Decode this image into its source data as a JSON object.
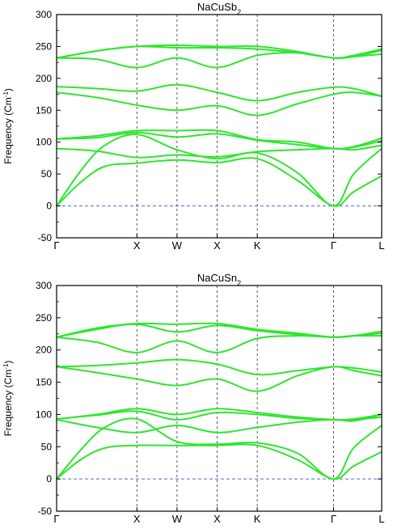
{
  "chart_data": [
    {
      "type": "line",
      "title": {
        "main": "NaCuSb",
        "sub": "2"
      },
      "ylabel": {
        "main": "Frequency (Cm",
        "sup": "-1",
        "end": ")"
      },
      "ylim": [
        -50,
        300
      ],
      "yticks": [
        -50,
        0,
        50,
        100,
        150,
        200,
        250,
        300
      ],
      "xticks": [
        {
          "label": "Γ",
          "x": 0
        },
        {
          "label": "X",
          "x": 1
        },
        {
          "label": "W",
          "x": 1.5
        },
        {
          "label": "X",
          "x": 2
        },
        {
          "label": "K",
          "x": 2.5
        },
        {
          "label": "Γ",
          "x": 3.45
        },
        {
          "label": "L",
          "x": 4.05
        }
      ],
      "xlim": [
        0,
        4.05
      ],
      "grid": "dashed vertical lines at symmetry points",
      "zero_line": "dashed blue",
      "line_color": "#2ee62e",
      "series": [
        {
          "x": [
            0,
            0.3,
            0.6,
            1.0,
            1.5,
            2.0,
            2.5,
            3.0,
            3.45,
            3.7,
            4.05
          ],
          "y": [
            0,
            37,
            62,
            67,
            72,
            68,
            74,
            40,
            0,
            22,
            47
          ]
        },
        {
          "x": [
            0,
            0.3,
            0.6,
            1.0,
            1.5,
            2.0,
            2.5,
            3.0,
            3.45,
            3.7,
            4.05
          ],
          "y": [
            0,
            55,
            95,
            112,
            88,
            74,
            83,
            52,
            0,
            50,
            90
          ]
        },
        {
          "x": [
            0,
            0.5,
            1.0,
            1.5,
            2.0,
            2.5,
            3.0,
            3.45,
            3.7,
            4.05
          ],
          "y": [
            90,
            86,
            76,
            80,
            77,
            85,
            88,
            90,
            88,
            95
          ]
        },
        {
          "x": [
            0,
            0.5,
            1.0,
            1.5,
            2.0,
            2.5,
            3.0,
            3.45,
            3.7,
            4.05
          ],
          "y": [
            105,
            107,
            115,
            108,
            113,
            103,
            96,
            90,
            92,
            102
          ]
        },
        {
          "x": [
            0,
            0.5,
            1.0,
            1.5,
            2.0,
            2.5,
            3.0,
            3.45,
            3.7,
            4.05
          ],
          "y": [
            105,
            110,
            118,
            118,
            118,
            104,
            100,
            90,
            93,
            106
          ]
        },
        {
          "x": [
            0,
            0.5,
            1.0,
            1.5,
            2.0,
            2.5,
            3.0,
            3.45,
            3.7,
            4.05
          ],
          "y": [
            178,
            170,
            158,
            150,
            157,
            142,
            160,
            175,
            178,
            172
          ]
        },
        {
          "x": [
            0,
            0.5,
            1.0,
            1.5,
            2.0,
            2.5,
            3.0,
            3.45,
            3.7,
            4.05
          ],
          "y": [
            187,
            184,
            180,
            190,
            178,
            165,
            178,
            186,
            184,
            172
          ]
        },
        {
          "x": [
            0,
            0.5,
            1.0,
            1.5,
            2.0,
            2.5,
            3.0,
            3.45,
            3.7,
            4.05
          ],
          "y": [
            232,
            230,
            217,
            232,
            217,
            236,
            240,
            232,
            234,
            238
          ]
        },
        {
          "x": [
            0,
            0.5,
            1.0,
            1.5,
            2.0,
            2.5,
            3.0,
            3.45,
            3.7,
            4.05
          ],
          "y": [
            232,
            243,
            250,
            248,
            248,
            246,
            240,
            232,
            234,
            244
          ]
        },
        {
          "x": [
            0,
            0.5,
            1.0,
            1.5,
            2.0,
            2.5,
            3.0,
            3.45,
            3.7,
            4.05
          ],
          "y": [
            232,
            243,
            250,
            252,
            250,
            250,
            242,
            232,
            236,
            246
          ]
        }
      ]
    },
    {
      "type": "line",
      "title": {
        "main": "NaCuSn",
        "sub": "2"
      },
      "ylabel": {
        "main": "Frequency (Cm",
        "sup": "-1",
        "end": ")"
      },
      "ylim": [
        -50,
        300
      ],
      "yticks": [
        -50,
        0,
        50,
        100,
        150,
        200,
        250,
        300
      ],
      "xticks": [
        {
          "label": "Γ",
          "x": 0
        },
        {
          "label": "X",
          "x": 1
        },
        {
          "label": "W",
          "x": 1.5
        },
        {
          "label": "X",
          "x": 2
        },
        {
          "label": "K",
          "x": 2.5
        },
        {
          "label": "Γ",
          "x": 3.45
        },
        {
          "label": "L",
          "x": 4.05
        }
      ],
      "xlim": [
        0,
        4.05
      ],
      "grid": "dashed vertical lines at symmetry points",
      "zero_line": "dashed blue",
      "line_color": "#2ee62e",
      "series": [
        {
          "x": [
            0,
            0.3,
            0.6,
            1.0,
            1.5,
            2.0,
            2.5,
            3.0,
            3.45,
            3.7,
            4.05
          ],
          "y": [
            0,
            30,
            48,
            52,
            52,
            52,
            52,
            30,
            0,
            20,
            42
          ]
        },
        {
          "x": [
            0,
            0.3,
            0.6,
            1.0,
            1.5,
            2.0,
            2.5,
            3.0,
            3.45,
            3.7,
            4.05
          ],
          "y": [
            0,
            45,
            80,
            93,
            58,
            54,
            56,
            40,
            0,
            48,
            83
          ]
        },
        {
          "x": [
            0,
            0.5,
            1.0,
            1.5,
            2.0,
            2.5,
            3.0,
            3.45,
            3.7,
            4.05
          ],
          "y": [
            92,
            80,
            72,
            83,
            72,
            80,
            88,
            92,
            90,
            100
          ]
        },
        {
          "x": [
            0,
            0.5,
            1.0,
            1.5,
            2.0,
            2.5,
            3.0,
            3.45,
            3.7,
            4.05
          ],
          "y": [
            93,
            99,
            105,
            92,
            103,
            100,
            94,
            92,
            92,
            96
          ]
        },
        {
          "x": [
            0,
            0.5,
            1.0,
            1.5,
            2.0,
            2.5,
            3.0,
            3.45,
            3.7,
            4.05
          ],
          "y": [
            93,
            100,
            109,
            100,
            109,
            103,
            96,
            92,
            93,
            100
          ]
        },
        {
          "x": [
            0,
            0.5,
            1.0,
            1.5,
            2.0,
            2.5,
            3.0,
            3.45,
            3.7,
            4.05
          ],
          "y": [
            174,
            165,
            155,
            145,
            155,
            136,
            160,
            174,
            168,
            160
          ]
        },
        {
          "x": [
            0,
            0.5,
            1.0,
            1.5,
            2.0,
            2.5,
            3.0,
            3.45,
            3.7,
            4.05
          ],
          "y": [
            174,
            176,
            180,
            185,
            178,
            162,
            168,
            174,
            172,
            166
          ]
        },
        {
          "x": [
            0,
            0.5,
            1.0,
            1.5,
            2.0,
            2.5,
            3.0,
            3.45,
            3.7,
            4.05
          ],
          "y": [
            220,
            212,
            196,
            214,
            196,
            218,
            222,
            220,
            222,
            222
          ]
        },
        {
          "x": [
            0,
            0.5,
            1.0,
            1.5,
            2.0,
            2.5,
            3.0,
            3.45,
            3.7,
            4.05
          ],
          "y": [
            220,
            232,
            240,
            228,
            238,
            230,
            224,
            220,
            222,
            226
          ]
        },
        {
          "x": [
            0,
            0.5,
            1.0,
            1.5,
            2.0,
            2.5,
            3.0,
            3.45,
            3.7,
            4.05
          ],
          "y": [
            220,
            234,
            241,
            240,
            241,
            232,
            226,
            220,
            222,
            229
          ]
        }
      ]
    }
  ]
}
